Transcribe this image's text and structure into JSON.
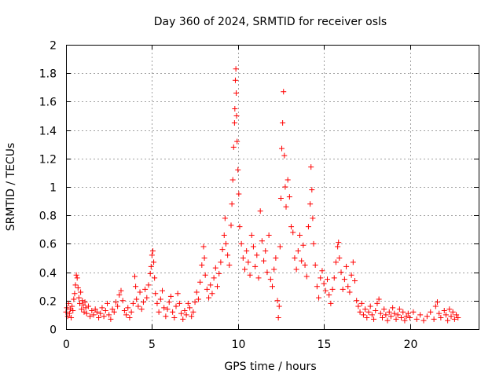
{
  "chart_data": {
    "type": "scatter",
    "title": "Day 360 of 2024, SRMTID for receiver osls",
    "xlabel": "GPS time / hours",
    "ylabel": "SRMTID / TECUs",
    "xlim": [
      0,
      24
    ],
    "ylim": [
      0,
      2
    ],
    "xticks": [
      0,
      5,
      10,
      15,
      20
    ],
    "xtick_labels": [
      "0",
      "5",
      "10",
      "15",
      "20"
    ],
    "yticks": [
      0,
      0.2,
      0.4,
      0.6,
      0.8,
      1,
      1.2,
      1.4,
      1.6,
      1.8,
      2
    ],
    "ytick_labels": [
      "0",
      "0.2",
      "0.4",
      "0.6",
      "0.8",
      "1",
      "1.2",
      "1.4",
      "1.6",
      "1.8",
      "2"
    ],
    "grid": true,
    "marker": "plus",
    "color": "#ff0000",
    "series": [
      {
        "name": "SRMTID",
        "points": [
          [
            0.0,
            0.12
          ],
          [
            0.05,
            0.15
          ],
          [
            0.1,
            0.09
          ],
          [
            0.15,
            0.18
          ],
          [
            0.2,
            0.11
          ],
          [
            0.25,
            0.14
          ],
          [
            0.3,
            0.08
          ],
          [
            0.35,
            0.16
          ],
          [
            0.4,
            0.13
          ],
          [
            0.45,
            0.21
          ],
          [
            0.5,
            0.25
          ],
          [
            0.55,
            0.31
          ],
          [
            0.6,
            0.38
          ],
          [
            0.65,
            0.36
          ],
          [
            0.7,
            0.29
          ],
          [
            0.75,
            0.22
          ],
          [
            0.8,
            0.18
          ],
          [
            0.85,
            0.26
          ],
          [
            0.9,
            0.14
          ],
          [
            0.95,
            0.2
          ],
          [
            1.0,
            0.17
          ],
          [
            1.05,
            0.12
          ],
          [
            1.1,
            0.19
          ],
          [
            1.15,
            0.15
          ],
          [
            1.2,
            0.11
          ],
          [
            1.3,
            0.16
          ],
          [
            1.4,
            0.09
          ],
          [
            1.5,
            0.13
          ],
          [
            1.6,
            0.1
          ],
          [
            1.7,
            0.14
          ],
          [
            1.8,
            0.12
          ],
          [
            1.9,
            0.08
          ],
          [
            2.0,
            0.11
          ],
          [
            2.1,
            0.15
          ],
          [
            2.2,
            0.09
          ],
          [
            2.3,
            0.13
          ],
          [
            2.4,
            0.18
          ],
          [
            2.5,
            0.1
          ],
          [
            2.6,
            0.07
          ],
          [
            2.7,
            0.14
          ],
          [
            2.8,
            0.12
          ],
          [
            2.9,
            0.19
          ],
          [
            3.0,
            0.16
          ],
          [
            3.1,
            0.24
          ],
          [
            3.2,
            0.27
          ],
          [
            3.3,
            0.2
          ],
          [
            3.4,
            0.13
          ],
          [
            3.5,
            0.1
          ],
          [
            3.6,
            0.15
          ],
          [
            3.7,
            0.08
          ],
          [
            3.8,
            0.12
          ],
          [
            3.9,
            0.18
          ],
          [
            4.0,
            0.37
          ],
          [
            4.05,
            0.3
          ],
          [
            4.1,
            0.21
          ],
          [
            4.2,
            0.16
          ],
          [
            4.3,
            0.26
          ],
          [
            4.4,
            0.14
          ],
          [
            4.5,
            0.19
          ],
          [
            4.6,
            0.28
          ],
          [
            4.7,
            0.22
          ],
          [
            4.8,
            0.31
          ],
          [
            4.9,
            0.39
          ],
          [
            4.95,
            0.44
          ],
          [
            5.0,
            0.52
          ],
          [
            5.05,
            0.55
          ],
          [
            5.1,
            0.47
          ],
          [
            5.15,
            0.36
          ],
          [
            5.2,
            0.25
          ],
          [
            5.3,
            0.18
          ],
          [
            5.4,
            0.12
          ],
          [
            5.5,
            0.21
          ],
          [
            5.6,
            0.27
          ],
          [
            5.7,
            0.15
          ],
          [
            5.8,
            0.09
          ],
          [
            5.9,
            0.14
          ],
          [
            6.0,
            0.19
          ],
          [
            6.1,
            0.23
          ],
          [
            6.2,
            0.12
          ],
          [
            6.3,
            0.08
          ],
          [
            6.4,
            0.16
          ],
          [
            6.5,
            0.25
          ],
          [
            6.6,
            0.18
          ],
          [
            6.7,
            0.11
          ],
          [
            6.8,
            0.07
          ],
          [
            6.9,
            0.13
          ],
          [
            7.0,
            0.1
          ],
          [
            7.1,
            0.18
          ],
          [
            7.2,
            0.15
          ],
          [
            7.3,
            0.09
          ],
          [
            7.4,
            0.12
          ],
          [
            7.5,
            0.19
          ],
          [
            7.6,
            0.26
          ],
          [
            7.7,
            0.21
          ],
          [
            7.8,
            0.33
          ],
          [
            7.9,
            0.45
          ],
          [
            8.0,
            0.58
          ],
          [
            8.05,
            0.5
          ],
          [
            8.1,
            0.38
          ],
          [
            8.2,
            0.28
          ],
          [
            8.3,
            0.22
          ],
          [
            8.4,
            0.31
          ],
          [
            8.5,
            0.25
          ],
          [
            8.6,
            0.36
          ],
          [
            8.7,
            0.43
          ],
          [
            8.8,
            0.3
          ],
          [
            8.9,
            0.39
          ],
          [
            9.0,
            0.47
          ],
          [
            9.1,
            0.56
          ],
          [
            9.2,
            0.66
          ],
          [
            9.25,
            0.78
          ],
          [
            9.3,
            0.6
          ],
          [
            9.4,
            0.52
          ],
          [
            9.5,
            0.45
          ],
          [
            9.6,
            0.73
          ],
          [
            9.65,
            0.88
          ],
          [
            9.7,
            1.05
          ],
          [
            9.75,
            1.28
          ],
          [
            9.8,
            1.45
          ],
          [
            9.82,
            1.55
          ],
          [
            9.85,
            1.75
          ],
          [
            9.88,
            1.83
          ],
          [
            9.9,
            1.66
          ],
          [
            9.92,
            1.5
          ],
          [
            9.95,
            1.32
          ],
          [
            10.0,
            1.12
          ],
          [
            10.05,
            0.95
          ],
          [
            10.1,
            0.72
          ],
          [
            10.2,
            0.6
          ],
          [
            10.3,
            0.5
          ],
          [
            10.4,
            0.42
          ],
          [
            10.5,
            0.55
          ],
          [
            10.6,
            0.47
          ],
          [
            10.7,
            0.38
          ],
          [
            10.8,
            0.66
          ],
          [
            10.9,
            0.58
          ],
          [
            11.0,
            0.44
          ],
          [
            11.1,
            0.52
          ],
          [
            11.2,
            0.36
          ],
          [
            11.3,
            0.83
          ],
          [
            11.4,
            0.62
          ],
          [
            11.5,
            0.48
          ],
          [
            11.6,
            0.55
          ],
          [
            11.7,
            0.4
          ],
          [
            11.8,
            0.66
          ],
          [
            11.9,
            0.35
          ],
          [
            12.0,
            0.3
          ],
          [
            12.1,
            0.42
          ],
          [
            12.2,
            0.5
          ],
          [
            12.3,
            0.2
          ],
          [
            12.35,
            0.08
          ],
          [
            12.4,
            0.16
          ],
          [
            12.45,
            0.58
          ],
          [
            12.5,
            0.92
          ],
          [
            12.55,
            1.27
          ],
          [
            12.6,
            1.45
          ],
          [
            12.65,
            1.67
          ],
          [
            12.7,
            1.22
          ],
          [
            12.75,
            1.0
          ],
          [
            12.8,
            0.86
          ],
          [
            12.9,
            1.05
          ],
          [
            13.0,
            0.93
          ],
          [
            13.1,
            0.72
          ],
          [
            13.2,
            0.68
          ],
          [
            13.3,
            0.5
          ],
          [
            13.4,
            0.42
          ],
          [
            13.5,
            0.55
          ],
          [
            13.6,
            0.66
          ],
          [
            13.7,
            0.48
          ],
          [
            13.8,
            0.59
          ],
          [
            13.9,
            0.45
          ],
          [
            14.0,
            0.37
          ],
          [
            14.1,
            0.72
          ],
          [
            14.2,
            0.88
          ],
          [
            14.25,
            1.14
          ],
          [
            14.3,
            0.98
          ],
          [
            14.35,
            0.78
          ],
          [
            14.4,
            0.6
          ],
          [
            14.5,
            0.45
          ],
          [
            14.6,
            0.3
          ],
          [
            14.7,
            0.22
          ],
          [
            14.8,
            0.36
          ],
          [
            14.9,
            0.41
          ],
          [
            15.0,
            0.32
          ],
          [
            15.1,
            0.27
          ],
          [
            15.2,
            0.35
          ],
          [
            15.3,
            0.24
          ],
          [
            15.4,
            0.18
          ],
          [
            15.5,
            0.28
          ],
          [
            15.6,
            0.36
          ],
          [
            15.7,
            0.47
          ],
          [
            15.8,
            0.58
          ],
          [
            15.85,
            0.61
          ],
          [
            15.9,
            0.5
          ],
          [
            16.0,
            0.4
          ],
          [
            16.1,
            0.28
          ],
          [
            16.2,
            0.35
          ],
          [
            16.3,
            0.44
          ],
          [
            16.4,
            0.3
          ],
          [
            16.5,
            0.26
          ],
          [
            16.6,
            0.38
          ],
          [
            16.7,
            0.47
          ],
          [
            16.8,
            0.34
          ],
          [
            16.9,
            0.2
          ],
          [
            17.0,
            0.16
          ],
          [
            17.1,
            0.12
          ],
          [
            17.2,
            0.18
          ],
          [
            17.3,
            0.1
          ],
          [
            17.4,
            0.14
          ],
          [
            17.5,
            0.08
          ],
          [
            17.6,
            0.12
          ],
          [
            17.7,
            0.16
          ],
          [
            17.8,
            0.1
          ],
          [
            17.9,
            0.07
          ],
          [
            18.0,
            0.13
          ],
          [
            18.1,
            0.18
          ],
          [
            18.2,
            0.21
          ],
          [
            18.3,
            0.11
          ],
          [
            18.4,
            0.08
          ],
          [
            18.5,
            0.14
          ],
          [
            18.6,
            0.1
          ],
          [
            18.7,
            0.06
          ],
          [
            18.8,
            0.12
          ],
          [
            18.9,
            0.09
          ],
          [
            19.0,
            0.15
          ],
          [
            19.1,
            0.11
          ],
          [
            19.2,
            0.07
          ],
          [
            19.3,
            0.1
          ],
          [
            19.4,
            0.14
          ],
          [
            19.5,
            0.08
          ],
          [
            19.6,
            0.12
          ],
          [
            19.7,
            0.06
          ],
          [
            19.8,
            0.09
          ],
          [
            19.9,
            0.11
          ],
          [
            20.0,
            0.08
          ],
          [
            20.2,
            0.12
          ],
          [
            20.4,
            0.07
          ],
          [
            20.6,
            0.1
          ],
          [
            20.8,
            0.06
          ],
          [
            21.0,
            0.09
          ],
          [
            21.2,
            0.12
          ],
          [
            21.4,
            0.07
          ],
          [
            21.5,
            0.16
          ],
          [
            21.6,
            0.19
          ],
          [
            21.7,
            0.11
          ],
          [
            21.8,
            0.08
          ],
          [
            22.0,
            0.13
          ],
          [
            22.1,
            0.1
          ],
          [
            22.2,
            0.06
          ],
          [
            22.3,
            0.14
          ],
          [
            22.4,
            0.09
          ],
          [
            22.5,
            0.12
          ],
          [
            22.6,
            0.07
          ],
          [
            22.7,
            0.1
          ],
          [
            22.8,
            0.08
          ]
        ]
      }
    ]
  }
}
